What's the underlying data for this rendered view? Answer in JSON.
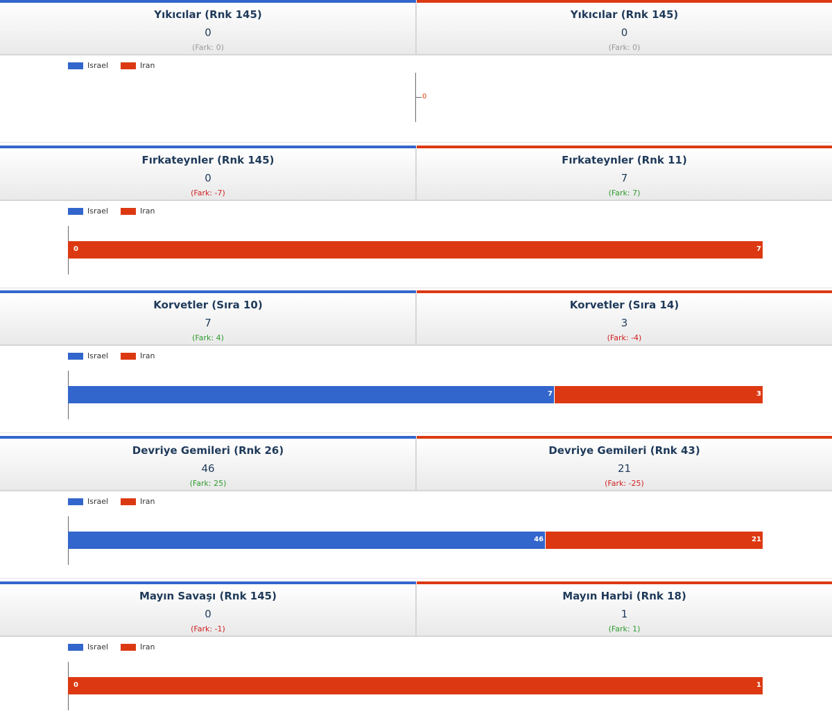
{
  "legend": {
    "israel": "Israel",
    "iran": "Iran"
  },
  "colors": {
    "israel": "#3366cc",
    "iran": "#dc3912"
  },
  "chart_data": [
    {
      "type": "bar",
      "left": {
        "title": "Yıkıcılar (Rnk 145)",
        "value": 0,
        "diff": "(Fark: 0)"
      },
      "right": {
        "title": "Yıkıcılar (Rnk 145)",
        "value": 0,
        "diff": "(Fark: 0)"
      },
      "series": [
        {
          "name": "Israel",
          "values": [
            0
          ]
        },
        {
          "name": "Iran",
          "values": [
            0
          ]
        }
      ],
      "zero_label": "0"
    },
    {
      "type": "bar",
      "left": {
        "title": "Fırkateynler (Rnk 145)",
        "value": 0,
        "diff": "(Fark: -7)"
      },
      "right": {
        "title": "Fırkateynler (Rnk 11)",
        "value": 7,
        "diff": "(Fark: 7)"
      },
      "series": [
        {
          "name": "Israel",
          "values": [
            0
          ]
        },
        {
          "name": "Iran",
          "values": [
            7
          ]
        }
      ]
    },
    {
      "type": "bar",
      "left": {
        "title": "Korvetler (Sıra 10)",
        "value": 7,
        "diff": "(Fark: 4)"
      },
      "right": {
        "title": "Korvetler (Sıra 14)",
        "value": 3,
        "diff": "(Fark: -4)"
      },
      "series": [
        {
          "name": "Israel",
          "values": [
            7
          ]
        },
        {
          "name": "Iran",
          "values": [
            3
          ]
        }
      ]
    },
    {
      "type": "bar",
      "left": {
        "title": "Devriye Gemileri (Rnk 26)",
        "value": 46,
        "diff": "(Fark: 25)"
      },
      "right": {
        "title": "Devriye Gemileri (Rnk 43)",
        "value": 21,
        "diff": "(Fark: -25)"
      },
      "series": [
        {
          "name": "Israel",
          "values": [
            46
          ]
        },
        {
          "name": "Iran",
          "values": [
            21
          ]
        }
      ]
    },
    {
      "type": "bar",
      "left": {
        "title": "Mayın Savaşı (Rnk 145)",
        "value": 0,
        "diff": "(Fark: -1)"
      },
      "right": {
        "title": "Mayın Harbi (Rnk 18)",
        "value": 1,
        "diff": "(Fark: 1)"
      },
      "series": [
        {
          "name": "Israel",
          "values": [
            0
          ]
        },
        {
          "name": "Iran",
          "values": [
            1
          ]
        }
      ]
    }
  ]
}
